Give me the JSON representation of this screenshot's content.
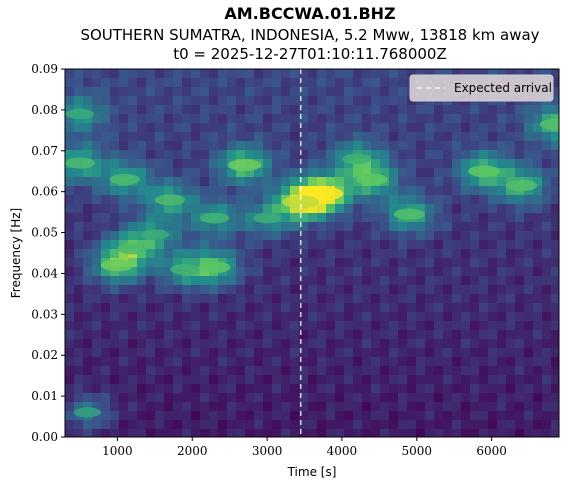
{
  "title": "AM.BCCWA.01.BHZ",
  "subtitle": "SOUTHERN SUMATRA, INDONESIA, 5.2 Mww, 13818 km away",
  "time_label": "t0 = 2025-12-27T01:10:11.768000Z",
  "colors": {
    "colormap": "viridis",
    "marker": "#ffffff"
  },
  "chart_data": {
    "type": "heatmap",
    "xlabel": "Time [s]",
    "ylabel": "Frequency [Hz]",
    "xlim": [
      300,
      6900
    ],
    "ylim": [
      0.0,
      0.09
    ],
    "xticks": [
      1000,
      2000,
      3000,
      4000,
      5000,
      6000
    ],
    "xtick_labels": [
      "1000",
      "2000",
      "3000",
      "4000",
      "5000",
      "6000"
    ],
    "yticks": [
      0.0,
      0.01,
      0.02,
      0.03,
      0.04,
      0.05,
      0.06,
      0.07,
      0.08,
      0.09
    ],
    "ytick_labels": [
      "0.00",
      "0.01",
      "0.02",
      "0.03",
      "0.04",
      "0.05",
      "0.06",
      "0.07",
      "0.08",
      "0.09"
    ],
    "expected_arrival_s": 3450,
    "legend": {
      "entries": [
        "Expected arrival"
      ],
      "placement": "top-right"
    },
    "hotspots": [
      {
        "t": 3750,
        "f": 0.0595,
        "power": 1.0
      },
      {
        "t": 3450,
        "f": 0.0575,
        "power": 0.85
      },
      {
        "t": 2700,
        "f": 0.0665,
        "power": 0.65
      },
      {
        "t": 1000,
        "f": 0.042,
        "power": 0.65
      },
      {
        "t": 1200,
        "f": 0.046,
        "power": 0.5
      },
      {
        "t": 2300,
        "f": 0.0415,
        "power": 0.6
      },
      {
        "t": 1900,
        "f": 0.041,
        "power": 0.45
      },
      {
        "t": 4400,
        "f": 0.063,
        "power": 0.6
      },
      {
        "t": 4200,
        "f": 0.068,
        "power": 0.45
      },
      {
        "t": 4900,
        "f": 0.0545,
        "power": 0.55
      },
      {
        "t": 5900,
        "f": 0.065,
        "power": 0.6
      },
      {
        "t": 6400,
        "f": 0.0615,
        "power": 0.55
      },
      {
        "t": 6850,
        "f": 0.0765,
        "power": 0.55
      },
      {
        "t": 500,
        "f": 0.067,
        "power": 0.5
      },
      {
        "t": 1100,
        "f": 0.063,
        "power": 0.5
      },
      {
        "t": 1700,
        "f": 0.058,
        "power": 0.5
      },
      {
        "t": 2300,
        "f": 0.0535,
        "power": 0.45
      },
      {
        "t": 1500,
        "f": 0.0495,
        "power": 0.4
      },
      {
        "t": 3000,
        "f": 0.0535,
        "power": 0.4
      },
      {
        "t": 500,
        "f": 0.079,
        "power": 0.4
      },
      {
        "t": 600,
        "f": 0.006,
        "power": 0.35
      }
    ]
  }
}
